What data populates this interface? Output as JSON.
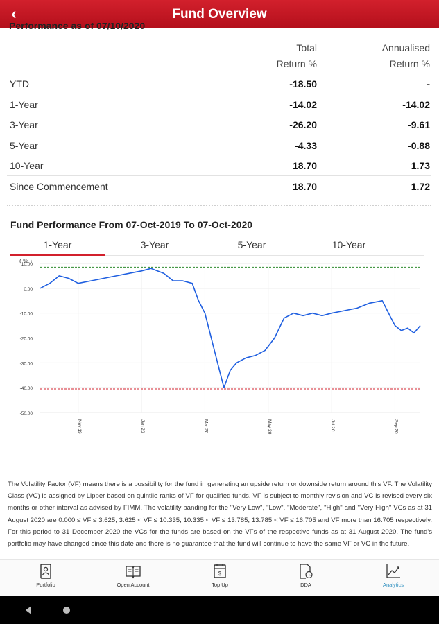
{
  "header": {
    "title": "Fund Overview",
    "back_icon": "chevron-left-icon"
  },
  "performance": {
    "heading": "Performance as of 07/10/2020",
    "col1_line1": "Total",
    "col1_line2": "Return %",
    "col2_line1": "Annualised",
    "col2_line2": "Return %",
    "rows": [
      {
        "label": "YTD",
        "total": "-18.50",
        "annualised": "-"
      },
      {
        "label": "1-Year",
        "total": "-14.02",
        "annualised": "-14.02"
      },
      {
        "label": "3-Year",
        "total": "-26.20",
        "annualised": "-9.61"
      },
      {
        "label": "5-Year",
        "total": "-4.33",
        "annualised": "-0.88"
      },
      {
        "label": "10-Year",
        "total": "18.70",
        "annualised": "1.73"
      },
      {
        "label": "Since Commencement",
        "total": "18.70",
        "annualised": "1.72"
      }
    ]
  },
  "fund_performance": {
    "title": "Fund Performance From 07-Oct-2019 To 07-Oct-2020",
    "tabs": [
      "1-Year",
      "3-Year",
      "5-Year",
      "10-Year"
    ],
    "active_tab": 0,
    "y_unit": "( % )"
  },
  "chart_data": {
    "type": "line",
    "title": "",
    "ylabel": "( % )",
    "ylim": [
      -50,
      10
    ],
    "y_ticks": [
      "10.00",
      "0.00",
      "-10.00",
      "-20.00",
      "-30.00",
      "-40.00",
      "-50.00"
    ],
    "x_ticks": [
      "Nov 19",
      "Jan 20",
      "Mar 20",
      "May 20",
      "Jul 20",
      "Sep 20"
    ],
    "x_range_months": [
      0,
      12
    ],
    "x_tick_positions_months": [
      1.2,
      3.2,
      5.2,
      7.2,
      9.2,
      11.2
    ],
    "reference_lines": [
      {
        "value": 8.5,
        "color": "#2e8b2e"
      },
      {
        "value": -40.5,
        "color": "#d2202c"
      }
    ],
    "line_color": "#1f5fe0",
    "series": [
      {
        "x": [
          0,
          0.3,
          0.6,
          0.9,
          1.2,
          1.6,
          2.0,
          2.4,
          2.8,
          3.2,
          3.5,
          3.9,
          4.2,
          4.5,
          4.8,
          5.0,
          5.2,
          5.4,
          5.6,
          5.8,
          6.0,
          6.2,
          6.5,
          6.8,
          7.1,
          7.4,
          7.7,
          8.0,
          8.3,
          8.6,
          8.9,
          9.2,
          9.6,
          10.0,
          10.4,
          10.8,
          11.0,
          11.2,
          11.4,
          11.6,
          11.8,
          12.0
        ],
        "values": [
          0,
          2,
          5,
          4,
          2,
          3,
          4,
          5,
          6,
          7,
          8,
          6,
          3,
          3,
          2,
          -5,
          -10,
          -20,
          -30,
          -40,
          -33,
          -30,
          -28,
          -27,
          -25,
          -20,
          -12,
          -10,
          -11,
          -10,
          -11,
          -10,
          -9,
          -8,
          -6,
          -5,
          -10,
          -15,
          -17,
          -16,
          -18,
          -15
        ]
      }
    ]
  },
  "disclaimer": {
    "text": "The Volatility Factor (VF) means there is a possibility for the fund in generating an upside return or downside return around this VF. The Volatility Class (VC) is assigned by Lipper based on quintile ranks of VF for qualified funds. VF is subject to monthly revision and VC is revised every six months or other interval as advised by FIMM. The volatility banding for the \"Very Low\", \"Low\", \"Moderate\", \"High\" and \"Very High\" VCs as at 31 August 2020 are 0.000 ≤ VF ≤ 3.625, 3.625 < VF ≤ 10.335, 10.335 < VF ≤ 13.785, 13.785 < VF ≤ 16.705 and VF more than 16.705 respectively. For this period to 31 December 2020 the VCs for the funds are based on the VFs of the respective funds as at 31 August 2020. The fund's portfolio may have changed since this date and there is no guarantee that the fund will continue to have the same VF or VC in the future."
  },
  "bottom_nav": {
    "items": [
      {
        "label": "Portfolio",
        "icon": "portfolio-icon"
      },
      {
        "label": "Open Account",
        "icon": "book-icon"
      },
      {
        "label": "Top Up",
        "icon": "calendar-topup-icon"
      },
      {
        "label": "DDA",
        "icon": "document-clock-icon"
      },
      {
        "label": "Analytics",
        "icon": "chart-icon"
      }
    ],
    "active_index": 4,
    "active_color": "#2d8fbf"
  },
  "system_nav": {
    "back_icon": "triangle-back-icon",
    "home_icon": "home-circle-icon"
  }
}
